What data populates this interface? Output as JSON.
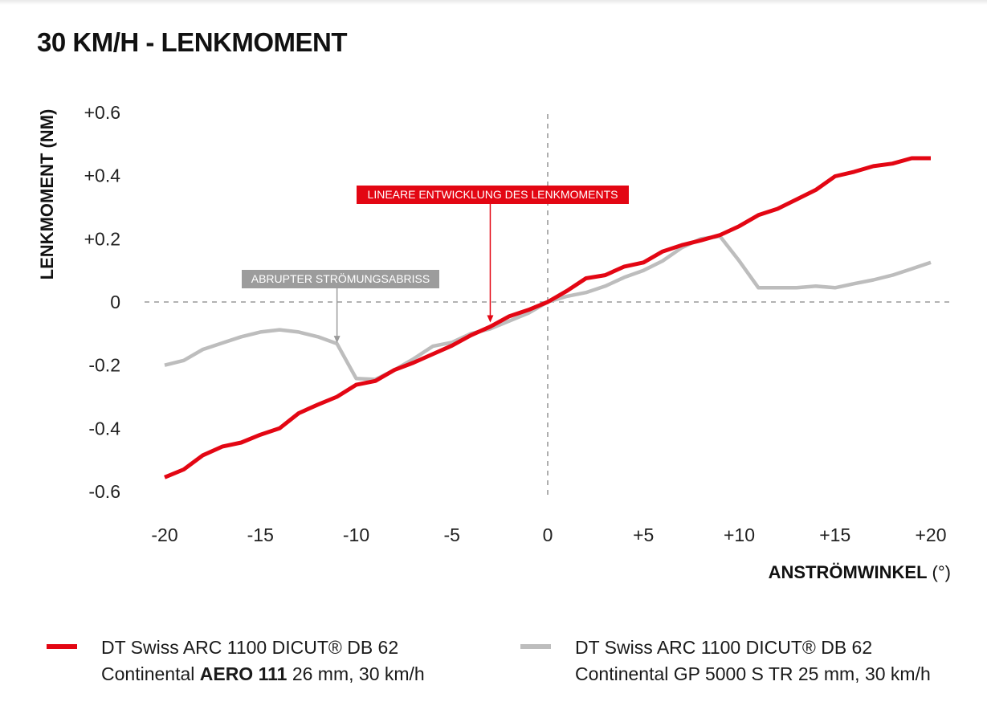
{
  "title": "30 KM/H - LENKMOMENT",
  "chart_data": {
    "type": "line",
    "ylabel": "LENKMOMENT (NM)",
    "xlabel_bold": "ANSTRÖMWINKEL",
    "xlabel_unit": "(°)",
    "xlim": [
      -20,
      20
    ],
    "ylim": [
      -0.6,
      0.6
    ],
    "x_ticks": [
      -20,
      -15,
      -10,
      -5,
      0,
      5,
      10,
      15,
      20
    ],
    "x_tick_labels": [
      "-20",
      "-15",
      "-10",
      "-5",
      "0",
      "+5",
      "+10",
      "+15",
      "+20"
    ],
    "y_ticks": [
      0.6,
      0.4,
      0.2,
      0,
      -0.2,
      -0.4,
      -0.6
    ],
    "y_tick_labels": [
      "+0.6",
      "+0.4",
      "+0.2",
      "0",
      "-0.2",
      "-0.4",
      "-0.6"
    ],
    "series": [
      {
        "color": "#e30613",
        "x": [
          -20,
          -19,
          -18,
          -17,
          -16,
          -15,
          -14,
          -13,
          -12,
          -11,
          -10,
          -9,
          -8,
          -7,
          -6,
          -5,
          -4,
          -3,
          -2,
          -1,
          0,
          1,
          2,
          3,
          4,
          5,
          6,
          7,
          8,
          9,
          10,
          11,
          12,
          13,
          14,
          15,
          16,
          17,
          18,
          19,
          20
        ],
        "y": [
          -0.555,
          -0.53,
          -0.485,
          -0.458,
          -0.445,
          -0.42,
          -0.4,
          -0.352,
          -0.325,
          -0.3,
          -0.262,
          -0.25,
          -0.215,
          -0.192,
          -0.165,
          -0.138,
          -0.105,
          -0.078,
          -0.045,
          -0.025,
          0,
          0.035,
          0.075,
          0.085,
          0.112,
          0.125,
          0.16,
          0.18,
          0.195,
          0.212,
          0.24,
          0.275,
          0.295,
          0.325,
          0.355,
          0.398,
          0.412,
          0.43,
          0.438,
          0.455,
          0.455
        ]
      },
      {
        "color": "#bdbdbd",
        "x": [
          -20,
          -19,
          -18,
          -17,
          -16,
          -15,
          -14,
          -13,
          -12,
          -11,
          -10,
          -9,
          -8,
          -7,
          -6,
          -5,
          -4,
          -3,
          -2,
          -1,
          0,
          1,
          2,
          3,
          4,
          5,
          6,
          7,
          8,
          9,
          10,
          11,
          12,
          13,
          14,
          15,
          16,
          17,
          18,
          19,
          20
        ],
        "y": [
          -0.2,
          -0.185,
          -0.15,
          -0.13,
          -0.11,
          -0.095,
          -0.088,
          -0.095,
          -0.11,
          -0.132,
          -0.242,
          -0.245,
          -0.215,
          -0.18,
          -0.14,
          -0.128,
          -0.1,
          -0.085,
          -0.06,
          -0.035,
          0,
          0.018,
          0.03,
          0.05,
          0.078,
          0.1,
          0.13,
          0.172,
          0.2,
          0.208,
          0.13,
          0.045,
          0.045,
          0.045,
          0.05,
          0.045,
          0.058,
          0.07,
          0.085,
          0.105,
          0.125
        ]
      }
    ],
    "annotations": [
      {
        "text": "LINEARE ENTWICKLUNG DES LENKMOMENTS",
        "x": -3,
        "y": -0.07,
        "color": "#e30613",
        "text_color": "#ffffff"
      },
      {
        "text": "ABRUPTER STRÖMUNGSABRISS",
        "x": -11,
        "y": -0.135,
        "color": "#9c9c9c",
        "text_color": "#ffffff"
      }
    ]
  },
  "legend": [
    {
      "color": "#e30613",
      "line1": "DT Swiss ARC 1100 DICUT® DB 62",
      "line2_pre": "Continental ",
      "line2_bold": "AERO 111",
      "line2_post": " 26 mm, 30 km/h"
    },
    {
      "color": "#bdbdbd",
      "line1": "DT Swiss ARC 1100 DICUT® DB 62",
      "line2": "Continental GP 5000 S TR 25 mm, 30 km/h"
    }
  ]
}
